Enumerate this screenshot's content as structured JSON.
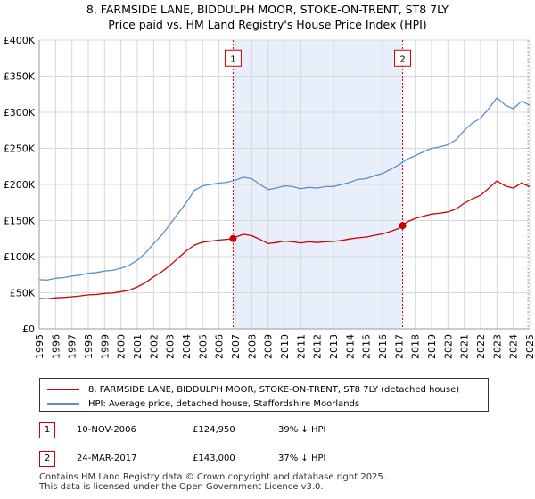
{
  "title_line1": "8, FARMSIDE LANE, BIDDULPH MOOR, STOKE-ON-TRENT, ST8 7LY",
  "title_line2": "Price paid vs. HM Land Registry's House Price Index (HPI)",
  "chart_data": {
    "type": "line",
    "title": "Price paid vs. HM Land Registry's House Price Index (HPI)",
    "xlabel": "",
    "ylabel": "",
    "xlim": [
      1995,
      2025
    ],
    "ylim": [
      0,
      400000
    ],
    "grid": true,
    "x_ticks": [
      "1995",
      "1996",
      "1997",
      "1998",
      "1999",
      "2000",
      "2001",
      "2002",
      "2003",
      "2004",
      "2005",
      "2006",
      "2007",
      "2008",
      "2009",
      "2010",
      "2011",
      "2012",
      "2013",
      "2014",
      "2015",
      "2016",
      "2017",
      "2018",
      "2019",
      "2020",
      "2021",
      "2022",
      "2023",
      "2024",
      "2025"
    ],
    "y_ticks": [
      {
        "value": 0,
        "label": "£0"
      },
      {
        "value": 50000,
        "label": "£50K"
      },
      {
        "value": 100000,
        "label": "£100K"
      },
      {
        "value": 150000,
        "label": "£150K"
      },
      {
        "value": 200000,
        "label": "£200K"
      },
      {
        "value": 250000,
        "label": "£250K"
      },
      {
        "value": 300000,
        "label": "£300K"
      },
      {
        "value": 350000,
        "label": "£350K"
      },
      {
        "value": 400000,
        "label": "£400K"
      }
    ],
    "shaded_region": {
      "from": 2006.86,
      "to": 2017.23
    },
    "series": [
      {
        "name": "HPI: Average price, detached house, Staffordshire Moorlands",
        "color": "#5b8fc9",
        "x": [
          1995,
          1995.5,
          1996,
          1996.5,
          1997,
          1997.5,
          1998,
          1998.5,
          1999,
          1999.5,
          2000,
          2000.5,
          2001,
          2001.5,
          2002,
          2002.5,
          2003,
          2003.5,
          2004,
          2004.5,
          2005,
          2005.5,
          2006,
          2006.5,
          2007,
          2007.5,
          2008,
          2008.5,
          2009,
          2009.5,
          2010,
          2010.5,
          2011,
          2011.5,
          2012,
          2012.5,
          2013,
          2013.5,
          2014,
          2014.5,
          2015,
          2015.5,
          2016,
          2016.5,
          2017,
          2017.5,
          2018,
          2018.5,
          2019,
          2019.5,
          2020,
          2020.5,
          2021,
          2021.5,
          2022,
          2022.5,
          2023,
          2023.5,
          2024,
          2024.5,
          2025
        ],
        "values": [
          68000,
          67500,
          70000,
          71000,
          73000,
          74500,
          77000,
          78000,
          80000,
          81000,
          84000,
          88000,
          95000,
          105000,
          118000,
          130000,
          145000,
          160000,
          175000,
          192000,
          198000,
          200000,
          202000,
          203000,
          206000,
          210000,
          208000,
          200000,
          193000,
          195000,
          198000,
          197000,
          194000,
          196000,
          195000,
          197000,
          197000,
          200000,
          203000,
          207000,
          208000,
          212000,
          215000,
          221000,
          227000,
          235000,
          240000,
          245000,
          250000,
          252000,
          255000,
          262000,
          275000,
          285000,
          292000,
          305000,
          320000,
          310000,
          305000,
          315000,
          310000
        ]
      },
      {
        "name": "8, FARMSIDE LANE, BIDDULPH MOOR, STOKE-ON-TRENT, ST8 7LY (detached house)",
        "color": "#cc0000",
        "x": [
          1995,
          1995.5,
          1996,
          1996.5,
          1997,
          1997.5,
          1998,
          1998.5,
          1999,
          1999.5,
          2000,
          2000.5,
          2001,
          2001.5,
          2002,
          2002.5,
          2003,
          2003.5,
          2004,
          2004.5,
          2005,
          2005.5,
          2006,
          2006.5,
          2006.86,
          2007,
          2007.5,
          2008,
          2008.5,
          2009,
          2009.5,
          2010,
          2010.5,
          2011,
          2011.5,
          2012,
          2012.5,
          2013,
          2013.5,
          2014,
          2014.5,
          2015,
          2015.5,
          2016,
          2016.5,
          2017,
          2017.23,
          2017.5,
          2018,
          2018.5,
          2019,
          2019.5,
          2020,
          2020.5,
          2021,
          2021.5,
          2022,
          2022.5,
          2023,
          2023.5,
          2024,
          2024.5,
          2025
        ],
        "values": [
          42000,
          41500,
          43000,
          43500,
          44500,
          45500,
          47000,
          47500,
          49000,
          49500,
          51500,
          53500,
          58000,
          64000,
          72000,
          79000,
          88000,
          98000,
          108000,
          116000,
          120000,
          121500,
          123000,
          124000,
          124950,
          127000,
          131000,
          129000,
          124000,
          118000,
          119500,
          121500,
          120500,
          119000,
          120500,
          119500,
          120500,
          121000,
          122500,
          124500,
          126000,
          127000,
          129500,
          131500,
          135000,
          139000,
          143000,
          148000,
          153000,
          156000,
          159000,
          160000,
          162000,
          166000,
          174000,
          180000,
          185000,
          195000,
          205000,
          198000,
          195000,
          202000,
          197000
        ]
      }
    ],
    "sales": [
      {
        "label": "1",
        "x": 2006.86,
        "value": 124950
      },
      {
        "label": "2",
        "x": 2017.23,
        "value": 143000
      }
    ]
  },
  "legend": {
    "items": [
      {
        "label": "8, FARMSIDE LANE, BIDDULPH MOOR, STOKE-ON-TRENT, ST8 7LY (detached house)",
        "color": "#cc0000"
      },
      {
        "label": "HPI: Average price, detached house, Staffordshire Moorlands",
        "color": "#5b8fc9"
      }
    ]
  },
  "sales_table": [
    {
      "num": "1",
      "date": "10-NOV-2006",
      "price": "£124,950",
      "hpi": "39% ↓ HPI"
    },
    {
      "num": "2",
      "date": "24-MAR-2017",
      "price": "£143,000",
      "hpi": "37% ↓ HPI"
    }
  ],
  "footer": {
    "line1": "Contains HM Land Registry data © Crown copyright and database right 2025.",
    "line2": "This data is licensed under the Open Government Licence v3.0."
  }
}
